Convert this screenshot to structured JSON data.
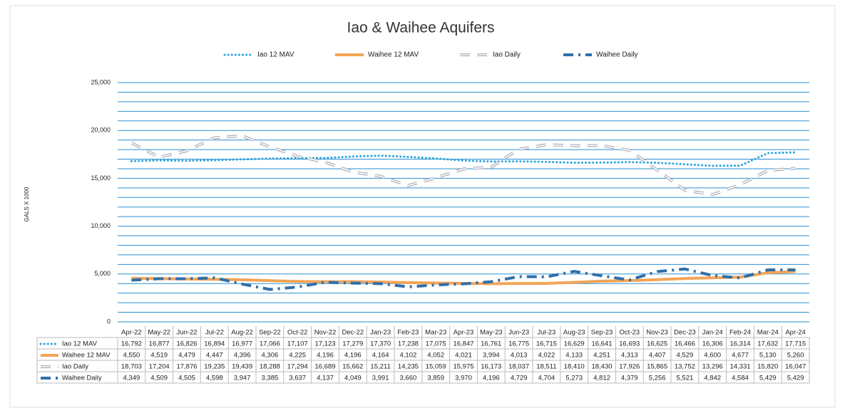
{
  "chart_data": {
    "type": "line",
    "title": "Iao & Waihee Aquifers",
    "y_label": "GALS X 1000",
    "categories": [
      "Apr-22",
      "May-22",
      "Jun-22",
      "Jul-22",
      "Aug-22",
      "Sep-22",
      "Oct-22",
      "Nov-22",
      "Dec-22",
      "Jan-23",
      "Feb-23",
      "Mar-23",
      "Apr-23",
      "May-23",
      "Jun-23",
      "Jul-23",
      "Aug-23",
      "Sep-23",
      "Oct-23",
      "Nov-23",
      "Dec-23",
      "Jan-24",
      "Feb-24",
      "Mar-24",
      "Apr-24"
    ],
    "ylim": [
      0,
      25000
    ],
    "yticks": [
      0,
      {
        "value": 5000,
        "label": "5,000"
      },
      {
        "value": 10000,
        "label": "10,000"
      },
      {
        "value": 15000,
        "label": "15,000"
      },
      {
        "value": 20000,
        "label": "20,000"
      },
      {
        "value": 25000,
        "label": "25,000"
      }
    ],
    "minor_yticks": [
      1000,
      2000,
      3000,
      4000,
      6000,
      7000,
      8000,
      9000,
      11000,
      12000,
      13000,
      14000,
      16000,
      17000,
      18000,
      19000,
      21000,
      22000,
      23000,
      24000
    ],
    "grid": true,
    "series": [
      {
        "name": "Iao 12 MAV",
        "color": "#2aa3dc",
        "line_style": "dotted",
        "values": [
          16792,
          16877,
          16826,
          16894,
          16977,
          17066,
          17107,
          17123,
          17279,
          17370,
          17238,
          17075,
          16847,
          16761,
          16775,
          16715,
          16629,
          16641,
          16693,
          16625,
          16466,
          16306,
          16314,
          17632,
          17715
        ],
        "value_labels": [
          "16,792",
          "16,877",
          "16,826",
          "16,894",
          "16,977",
          "17,066",
          "17,107",
          "17,123",
          "17,279",
          "17,370",
          "17,238",
          "17,075",
          "16,847",
          "16,761",
          "16,775",
          "16,715",
          "16,629",
          "16,641",
          "16,693",
          "16,625",
          "16,466",
          "16,306",
          "16,314",
          "17,632",
          "17,715"
        ]
      },
      {
        "name": "Waihee 12 MAV",
        "color": "#f3a457",
        "line_style": "solid",
        "values": [
          4550,
          4519,
          4479,
          4447,
          4396,
          4306,
          4225,
          4196,
          4196,
          4164,
          4102,
          4052,
          4021,
          3994,
          4013,
          4022,
          4133,
          4251,
          4313,
          4407,
          4529,
          4600,
          4677,
          5130,
          5260
        ],
        "value_labels": [
          "4,550",
          "4,519",
          "4,479",
          "4,447",
          "4,396",
          "4,306",
          "4,225",
          "4,196",
          "4,196",
          "4,164",
          "4,102",
          "4,052",
          "4,021",
          "3,994",
          "4,013",
          "4,022",
          "4,133",
          "4,251",
          "4,313",
          "4,407",
          "4,529",
          "4,600",
          "4,677",
          "5,130",
          "5,260"
        ]
      },
      {
        "name": "Iao Daily",
        "color": "#a9adb8",
        "line_style": "double-dashed",
        "values": [
          18703,
          17204,
          17876,
          19235,
          19439,
          18288,
          17294,
          16689,
          15662,
          15211,
          14235,
          15059,
          15975,
          16173,
          18037,
          18511,
          18410,
          18430,
          17926,
          15865,
          13752,
          13296,
          14331,
          15820,
          16047
        ],
        "value_labels": [
          "18,703",
          "17,204",
          "17,876",
          "19,235",
          "19,439",
          "18,288",
          "17,294",
          "16,689",
          "15,662",
          "15,211",
          "14,235",
          "15,059",
          "15,975",
          "16,173",
          "18,037",
          "18,511",
          "18,410",
          "18,430",
          "17,926",
          "15,865",
          "13,752",
          "13,296",
          "14,331",
          "15,820",
          "16,047"
        ]
      },
      {
        "name": "Waihee Daily",
        "color": "#2f6faa",
        "line_style": "dash-dot",
        "values": [
          4349,
          4509,
          4505,
          4598,
          3947,
          3385,
          3637,
          4137,
          4049,
          3991,
          3660,
          3859,
          3970,
          4196,
          4729,
          4704,
          5273,
          4812,
          4379,
          5256,
          5521,
          4842,
          4584,
          5429,
          5429
        ],
        "value_labels": [
          "4,349",
          "4,509",
          "4,505",
          "4,598",
          "3,947",
          "3,385",
          "3,637",
          "4,137",
          "4,049",
          "3,991",
          "3,660",
          "3,859",
          "3,970",
          "4,196",
          "4,729",
          "4,704",
          "5,273",
          "4,812",
          "4,379",
          "5,256",
          "5,521",
          "4,842",
          "4,584",
          "5,429",
          "5,429"
        ]
      }
    ]
  }
}
